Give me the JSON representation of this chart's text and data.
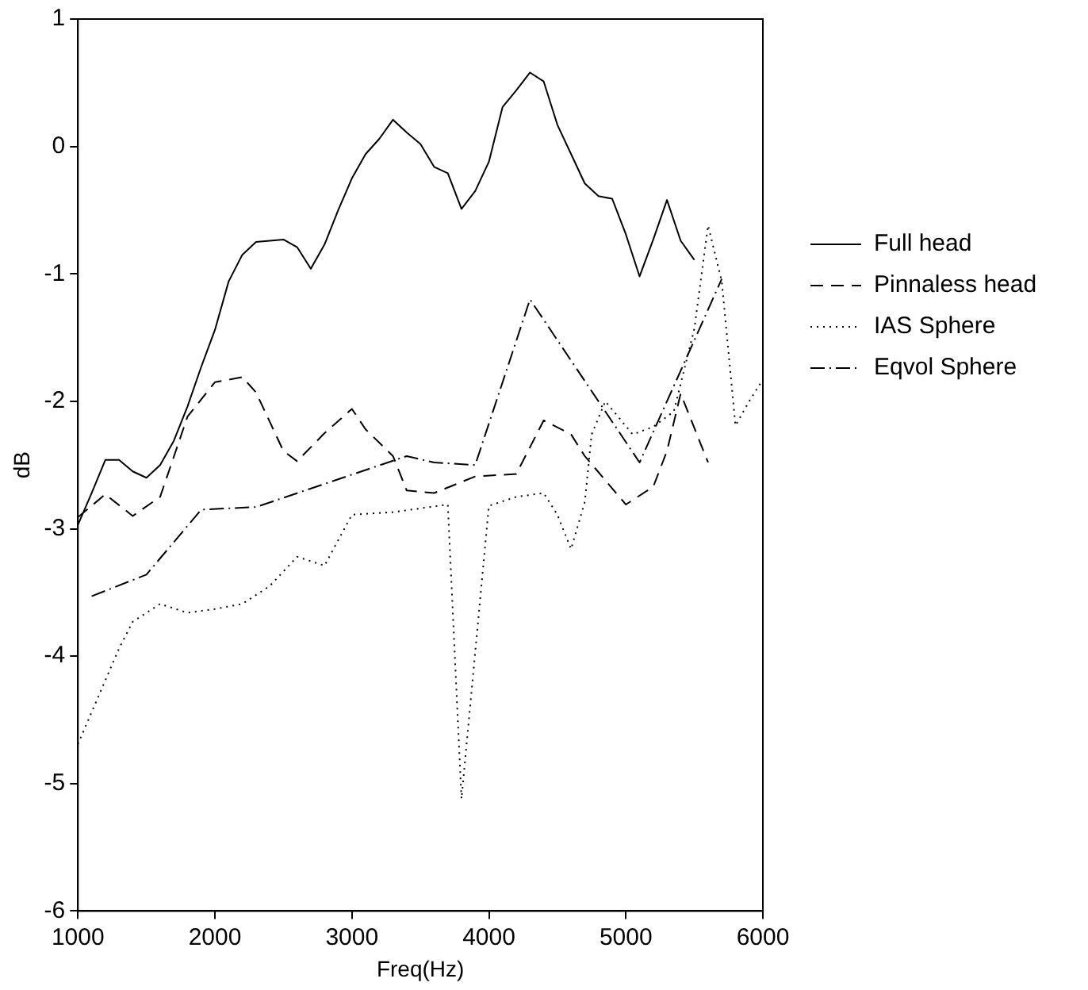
{
  "chart_data": {
    "type": "line",
    "xlabel": "Freq(Hz)",
    "ylabel": "dB",
    "xlim": [
      1000,
      6000
    ],
    "xticks": [
      1000,
      2000,
      3000,
      4000,
      5000,
      6000
    ],
    "ylim": [
      -6,
      1
    ],
    "yticks": [
      -6,
      -5,
      -4,
      -3,
      -2,
      -1,
      0,
      1
    ],
    "grid": false,
    "legend": "right",
    "marker": "none",
    "series": [
      {
        "name": "Full head",
        "color": "#000000",
        "line_style": "solid",
        "x": [
          1000,
          1100,
          1200,
          1300,
          1400,
          1500,
          1600,
          1700,
          1800,
          1900,
          2000,
          2100,
          2200,
          2300,
          2500,
          2600,
          2700,
          2800,
          2900,
          3000,
          3100,
          3200,
          3300,
          3400,
          3500,
          3600,
          3700,
          3800,
          3900,
          4000,
          4100,
          4200,
          4300,
          4400,
          4500,
          4600,
          4700,
          4800,
          4900,
          5000,
          5100,
          5200,
          5300,
          5400,
          5500
        ],
        "values": [
          -2.97,
          -2.72,
          -2.46,
          -2.46,
          -2.55,
          -2.6,
          -2.5,
          -2.31,
          -2.04,
          -1.73,
          -1.44,
          -1.06,
          -0.85,
          -0.75,
          -0.73,
          -0.79,
          -0.96,
          -0.77,
          -0.5,
          -0.25,
          -0.06,
          0.06,
          0.21,
          0.11,
          0.02,
          -0.16,
          -0.21,
          -0.49,
          -0.35,
          -0.12,
          0.31,
          0.44,
          0.58,
          0.51,
          0.17,
          -0.06,
          -0.29,
          -0.39,
          -0.41,
          -0.69,
          -1.02,
          -0.73,
          -0.42,
          -0.74,
          -0.89
        ]
      },
      {
        "name": "Pinnaless head",
        "color": "#000000",
        "line_style": "dashed",
        "x": [
          1000,
          1200,
          1400,
          1600,
          1800,
          2000,
          2200,
          2300,
          2500,
          2600,
          2800,
          3000,
          3100,
          3300,
          3400,
          3600,
          3900,
          4200,
          4400,
          4600,
          4700,
          5000,
          5200,
          5300,
          5400,
          5600
        ],
        "values": [
          -2.91,
          -2.73,
          -2.9,
          -2.75,
          -2.12,
          -1.85,
          -1.81,
          -1.93,
          -2.39,
          -2.47,
          -2.25,
          -2.06,
          -2.22,
          -2.43,
          -2.7,
          -2.72,
          -2.59,
          -2.57,
          -2.15,
          -2.26,
          -2.43,
          -2.81,
          -2.67,
          -2.39,
          -1.94,
          -2.48
        ]
      },
      {
        "name": "IAS Sphere",
        "color": "#000000",
        "line_style": "dotted",
        "x": [
          1000,
          1100,
          1200,
          1300,
          1400,
          1600,
          1800,
          2000,
          2200,
          2400,
          2600,
          2800,
          3000,
          3300,
          3700,
          3800,
          4000,
          4200,
          4400,
          4500,
          4600,
          4700,
          4750,
          4850,
          5050,
          5200,
          5350,
          5500,
          5600,
          5700,
          5800,
          5900,
          6000
        ],
        "values": [
          -4.69,
          -4.44,
          -4.19,
          -3.94,
          -3.73,
          -3.59,
          -3.66,
          -3.63,
          -3.59,
          -3.45,
          -3.22,
          -3.29,
          -2.89,
          -2.87,
          -2.81,
          -5.12,
          -2.82,
          -2.75,
          -2.72,
          -2.89,
          -3.16,
          -2.79,
          -2.26,
          -2.0,
          -2.26,
          -2.2,
          -2.08,
          -1.43,
          -0.62,
          -1.06,
          -2.19,
          -2.0,
          -1.83
        ]
      },
      {
        "name": "Eqvol Sphere",
        "color": "#000000",
        "line_style": "dashdot",
        "x": [
          1100,
          1500,
          1900,
          2300,
          3400,
          3600,
          3900,
          4300,
          5100,
          5700
        ],
        "values": [
          -3.53,
          -3.36,
          -2.85,
          -2.83,
          -2.43,
          -2.48,
          -2.5,
          -1.2,
          -2.48,
          -1.04
        ]
      }
    ]
  }
}
